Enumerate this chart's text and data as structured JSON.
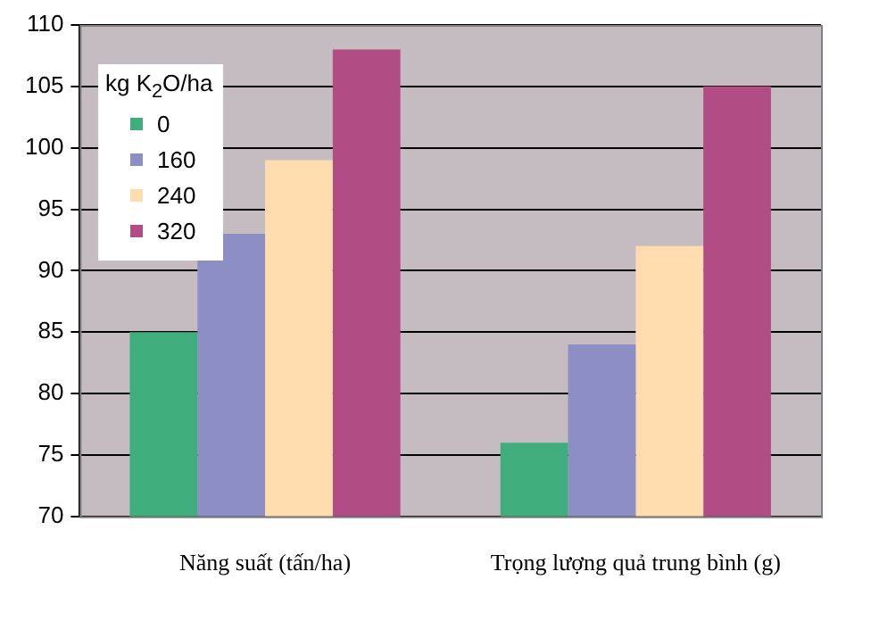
{
  "chart_data": {
    "type": "bar",
    "legend_title": "kg K$_{2}$O/ha",
    "categories": [
      "Năng suất (tấn/ha)",
      "Trọng lượng quả trung bình (g)"
    ],
    "series": [
      {
        "name": "0",
        "color": "#3fae7c",
        "values": [
          85,
          76
        ]
      },
      {
        "name": "160",
        "color": "#8c8ec4",
        "values": [
          93,
          84
        ]
      },
      {
        "name": "240",
        "color": "#ffdcae",
        "values": [
          99,
          92
        ]
      },
      {
        "name": "320",
        "color": "#b24c84",
        "values": [
          108,
          105
        ]
      }
    ],
    "ylim": [
      70,
      110
    ],
    "yticks": [
      70,
      75,
      80,
      85,
      90,
      95,
      100,
      105,
      110
    ],
    "grid": "y",
    "legend": "top left"
  }
}
